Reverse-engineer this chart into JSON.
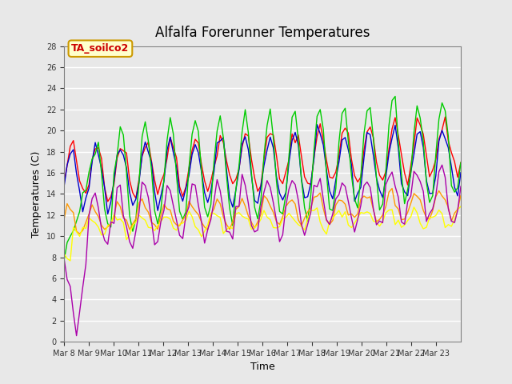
{
  "title": "Alfalfa Forerunner Temperatures",
  "xlabel": "Time",
  "ylabel": "Temperatures (C)",
  "annotation": "TA_soilco2",
  "ylim": [
    0,
    28
  ],
  "bg_color": "#e8e8e8",
  "plot_bg_color": "#e8e8e8",
  "grid_color": "white",
  "series_colors": {
    "-16cm": "#ff0000",
    "-8cm": "#0000cc",
    "-2cm": "#00cc00",
    "Ref_SoilT_3": "#ff9900",
    "Ref_SoilT_2": "#ffff00",
    "Ref_SoilT_1": "#aa00aa"
  },
  "xtick_labels": [
    "Mar 8",
    "Mar 9",
    "Mar 10",
    "Mar 11",
    "Mar 12",
    "Mar 13",
    "Mar 14",
    "Mar 15",
    "Mar 16",
    "Mar 17",
    "Mar 18",
    "Mar 19",
    "Mar 20",
    "Mar 21",
    "Mar 22",
    "Mar 23"
  ],
  "n_days": 16,
  "points_per_day": 8
}
